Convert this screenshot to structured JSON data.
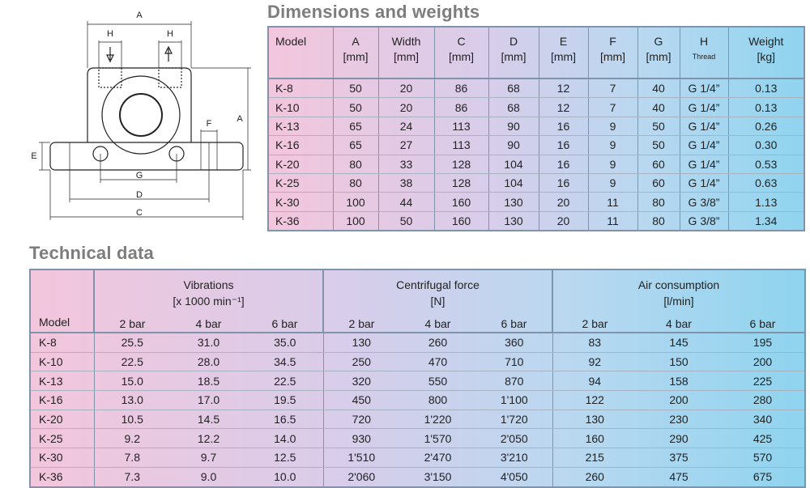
{
  "diagram": {
    "labels": [
      "A",
      "H",
      "H",
      "A",
      "F",
      "E",
      "G",
      "D",
      "C"
    ]
  },
  "dimensions": {
    "title": "Dimensions and weights",
    "columns": [
      {
        "name": "Model"
      },
      {
        "name": "A",
        "unit": "[mm]"
      },
      {
        "name": "Width",
        "unit": "[mm]"
      },
      {
        "name": "C",
        "unit": "[mm]"
      },
      {
        "name": "D",
        "unit": "[mm]"
      },
      {
        "name": "E",
        "unit": "[mm]"
      },
      {
        "name": "F",
        "unit": "[mm]"
      },
      {
        "name": "G",
        "unit": "[mm]"
      },
      {
        "name": "H",
        "note": "Thread"
      },
      {
        "name": "Weight",
        "unit": "[kg]"
      }
    ],
    "rows": [
      [
        "K-8",
        "50",
        "20",
        "86",
        "68",
        "12",
        "7",
        "40",
        "G 1/4”",
        "0.13"
      ],
      [
        "K-10",
        "50",
        "20",
        "86",
        "68",
        "12",
        "7",
        "40",
        "G 1/4”",
        "0.13"
      ],
      [
        "K-13",
        "65",
        "24",
        "113",
        "90",
        "16",
        "9",
        "50",
        "G 1/4”",
        "0.26"
      ],
      [
        "K-16",
        "65",
        "27",
        "113",
        "90",
        "16",
        "9",
        "50",
        "G 1/4”",
        "0.30"
      ],
      [
        "K-20",
        "80",
        "33",
        "128",
        "104",
        "16",
        "9",
        "60",
        "G 1/4”",
        "0.53"
      ],
      [
        "K-25",
        "80",
        "38",
        "128",
        "104",
        "16",
        "9",
        "60",
        "G 1/4”",
        "0.63"
      ],
      [
        "K-30",
        "100",
        "44",
        "160",
        "130",
        "20",
        "11",
        "80",
        "G 3/8”",
        "1.13"
      ],
      [
        "K-36",
        "100",
        "50",
        "160",
        "130",
        "20",
        "11",
        "80",
        "G 3/8”",
        "1.34"
      ]
    ]
  },
  "technical": {
    "title": "Technical data",
    "model_header": "Model",
    "groups": [
      {
        "name": "Vibrations",
        "unit": "[x 1000 min⁻¹]",
        "columns": [
          "2 bar",
          "4 bar",
          "6 bar"
        ]
      },
      {
        "name": "Centrifugal force",
        "unit": "[N]",
        "columns": [
          "2 bar",
          "4 bar",
          "6 bar"
        ]
      },
      {
        "name": "Air consumption",
        "unit": "[l/min]",
        "columns": [
          "2 bar",
          "4 bar",
          "6 bar"
        ]
      }
    ],
    "rows": [
      [
        "K-8",
        "25.5",
        "31.0",
        "35.0",
        "130",
        "260",
        "360",
        "83",
        "145",
        "195"
      ],
      [
        "K-10",
        "22.5",
        "28.0",
        "34.5",
        "250",
        "470",
        "710",
        "92",
        "150",
        "200"
      ],
      [
        "K-13",
        "15.0",
        "18.5",
        "22.5",
        "320",
        "550",
        "870",
        "94",
        "158",
        "225"
      ],
      [
        "K-16",
        "13.0",
        "17.0",
        "19.5",
        "450",
        "800",
        "1'100",
        "122",
        "200",
        "280"
      ],
      [
        "K-20",
        "10.5",
        "14.5",
        "16.5",
        "720",
        "1'220",
        "1'720",
        "130",
        "230",
        "340"
      ],
      [
        "K-25",
        "9.2",
        "12.2",
        "14.0",
        "930",
        "1'570",
        "2'050",
        "160",
        "290",
        "425"
      ],
      [
        "K-30",
        "7.8",
        "9.7",
        "12.5",
        "1'510",
        "2'470",
        "3'210",
        "215",
        "375",
        "570"
      ],
      [
        "K-36",
        "7.3",
        "9.0",
        "10.0",
        "2'060",
        "3'150",
        "4'050",
        "260",
        "475",
        "675"
      ]
    ]
  }
}
